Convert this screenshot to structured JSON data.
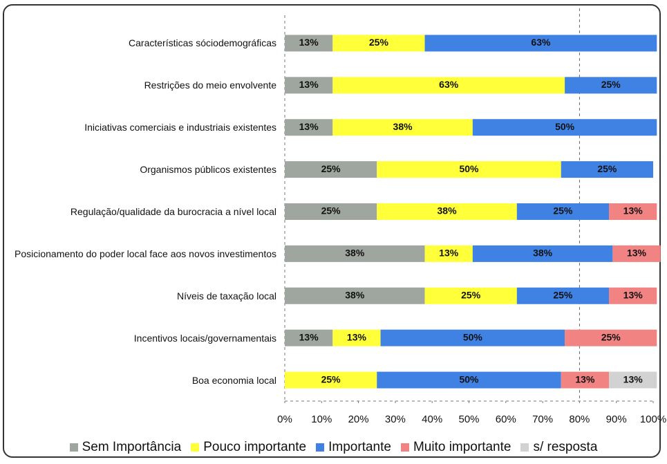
{
  "chart_data": {
    "type": "stacked_barh",
    "categories": [
      "Características sóciodemográficas",
      "Restrições do meio envolvente",
      "Iniciativas comerciais e industriais existentes",
      "Organismos públicos existentes",
      "Regulação/qualidade da burocracia a nível local",
      "Posicionamento do poder local face aos novos investimentos",
      "Níveis de taxação local",
      "Incentivos locais/governamentais",
      "Boa economia local"
    ],
    "series": [
      {
        "name": "Sem Importância",
        "color": "#9ea69f",
        "values": [
          13,
          13,
          13,
          25,
          25,
          38,
          38,
          13,
          null
        ],
        "value_labels": [
          "13%",
          "13%",
          "13%",
          "25%",
          "25%",
          "38%",
          "38%",
          "13%",
          null
        ]
      },
      {
        "name": "Pouco importante",
        "color": "#ffff3a",
        "values": [
          25,
          63,
          38,
          50,
          38,
          13,
          25,
          13,
          25
        ],
        "value_labels": [
          "25%",
          "63%",
          "38%",
          "50%",
          "38%",
          "13%",
          "25%",
          "13%",
          "25%"
        ]
      },
      {
        "name": "Importante",
        "color": "#3f82e3",
        "values": [
          63,
          25,
          50,
          25,
          25,
          38,
          25,
          50,
          50
        ],
        "value_labels": [
          "63%",
          "25%",
          "50%",
          "25%",
          "25%",
          "38%",
          "25%",
          "50%",
          "50%"
        ]
      },
      {
        "name": "Muito importante",
        "color": "#f28383",
        "values": [
          null,
          null,
          null,
          null,
          13,
          13,
          13,
          25,
          13
        ],
        "value_labels": [
          null,
          null,
          null,
          null,
          "13%",
          "13%",
          "13%",
          "25%",
          "13%"
        ]
      },
      {
        "name": "s/ resposta",
        "color": "#d2d2d2",
        "values": [
          null,
          null,
          null,
          null,
          null,
          null,
          null,
          null,
          13
        ],
        "value_labels": [
          null,
          null,
          null,
          null,
          null,
          null,
          null,
          null,
          "13%"
        ]
      }
    ],
    "xlim": [
      0,
      100
    ],
    "xticks": [
      {
        "value": 0,
        "label": "0%"
      },
      {
        "value": 10,
        "label": "10%"
      },
      {
        "value": 20,
        "label": "20%"
      },
      {
        "value": 30,
        "label": "30%"
      },
      {
        "value": 40,
        "label": "40%"
      },
      {
        "value": 50,
        "label": "50%"
      },
      {
        "value": 60,
        "label": "60%"
      },
      {
        "value": 70,
        "label": "70%"
      },
      {
        "value": 80,
        "label": "80%"
      },
      {
        "value": 90,
        "label": "90%"
      },
      {
        "value": 100,
        "label": "100%"
      }
    ],
    "reference_line_x": 80,
    "legend": "bottom"
  }
}
